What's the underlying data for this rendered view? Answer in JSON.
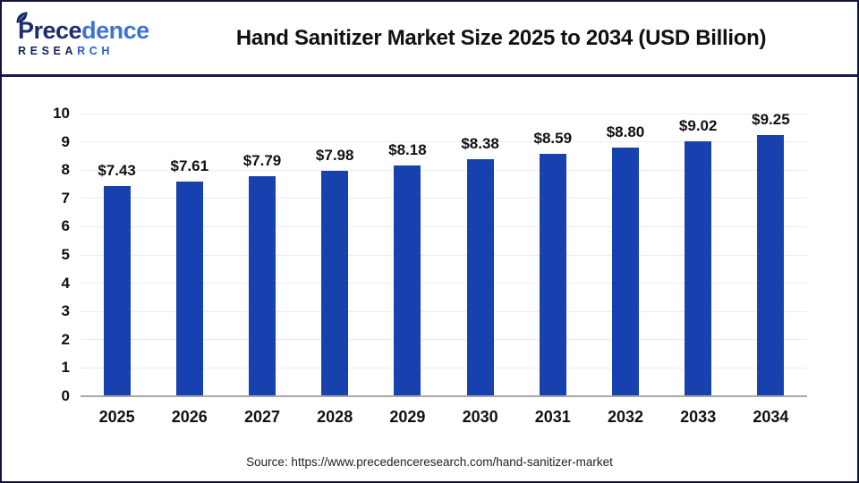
{
  "header": {
    "logo": {
      "name_part1": "Prece",
      "name_part2": "dence",
      "subtitle_part1": "RESEA",
      "subtitle_part2": "RCH"
    },
    "title": "Hand Sanitizer Market Size 2025 to 2034 (USD Billion)"
  },
  "chart_data": {
    "type": "bar",
    "title": "Hand Sanitizer Market Size 2025 to 2034 (USD Billion)",
    "categories": [
      "2025",
      "2026",
      "2027",
      "2028",
      "2029",
      "2030",
      "2031",
      "2032",
      "2033",
      "2034"
    ],
    "values": [
      7.43,
      7.61,
      7.79,
      7.98,
      8.18,
      8.38,
      8.59,
      8.8,
      9.02,
      9.25
    ],
    "value_labels": [
      "$7.43",
      "$7.61",
      "$7.79",
      "$7.98",
      "$8.18",
      "$8.38",
      "$8.59",
      "$8.80",
      "$9.02",
      "$9.25"
    ],
    "xlabel": "",
    "ylabel": "",
    "ylim": [
      0,
      10
    ],
    "y_ticks": [
      0,
      1,
      2,
      3,
      4,
      5,
      6,
      7,
      8,
      9,
      10
    ],
    "grid": "horizontal",
    "legend": "none",
    "bar_color": "#1641ae",
    "gridline_color": "#ececec",
    "axis_color": "#a8a8a8",
    "label_color": "#111111"
  },
  "footer": {
    "source": "Source: https://www.precedenceresearch.com/hand-sanitizer-market"
  }
}
